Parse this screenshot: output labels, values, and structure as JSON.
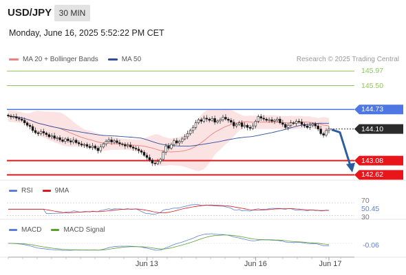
{
  "header": {
    "symbol": "USD/JPY",
    "timeframe": "30 MIN",
    "datetime": "Monday, June 16, 2025 5:52:22 PM CET",
    "credit": "Research © 2025 Trading Central"
  },
  "colors": {
    "resistance_green": "#8cc65a",
    "pivot_blue": "#4d77e3",
    "support_red": "#e8161b",
    "current_price_box": "#2b2b2b",
    "candle_up": "#444444",
    "candle_down": "#111111",
    "bollinger_fill": "#fbdede",
    "ma20": "#f07f7f",
    "ma50": "#2c4e9a",
    "arrow": "#2c5d9f",
    "rsi": "#5b7fd6",
    "rsi_ma": "#d81a1a",
    "macd": "#5b7fd6",
    "macd_signal": "#5aa02c"
  },
  "chart_data": [
    {
      "type": "candlestick",
      "name": "price",
      "legend": [
        "MA 20 + Bollinger Bands",
        "MA 50"
      ],
      "ylim": [
        142.45,
        146.2
      ],
      "x_ticks": [
        "Jun 13",
        "Jun 16",
        "Jun 17"
      ],
      "levels": [
        {
          "label": "145.97",
          "value": 145.97,
          "kind": "resistance"
        },
        {
          "label": "145.50",
          "value": 145.5,
          "kind": "resistance"
        },
        {
          "label": "144.73",
          "value": 144.73,
          "kind": "pivot"
        },
        {
          "label": "144.10",
          "value": 144.1,
          "kind": "current"
        },
        {
          "label": "143.08",
          "value": 143.08,
          "kind": "support"
        },
        {
          "label": "142.62",
          "value": 142.62,
          "kind": "support"
        }
      ],
      "trend_arrow": {
        "from": 144.08,
        "to": 142.7,
        "direction": "down"
      },
      "close": [
        144.52,
        144.49,
        144.5,
        144.45,
        144.42,
        144.38,
        144.3,
        144.22,
        144.18,
        144.05,
        143.98,
        143.95,
        144.02,
        143.97,
        143.92,
        143.85,
        143.88,
        143.8,
        143.82,
        143.75,
        143.7,
        143.78,
        143.72,
        143.68,
        143.74,
        143.66,
        143.62,
        143.58,
        143.6,
        143.54,
        143.5,
        143.55,
        143.48,
        143.4,
        143.52,
        143.62,
        143.7,
        143.75,
        143.68,
        143.72,
        143.66,
        143.62,
        143.6,
        143.55,
        143.58,
        143.52,
        143.48,
        143.45,
        143.4,
        143.35,
        143.25,
        143.18,
        143.1,
        143.0,
        142.98,
        143.05,
        143.12,
        143.35,
        143.55,
        143.48,
        143.6,
        143.72,
        143.65,
        143.7,
        143.78,
        143.85,
        143.95,
        144.05,
        144.15,
        144.3,
        144.4,
        144.35,
        144.45,
        144.42,
        144.38,
        144.44,
        144.32,
        144.36,
        144.4,
        144.48,
        144.42,
        144.38,
        144.32,
        144.2,
        144.25,
        144.3,
        144.18,
        144.22,
        144.15,
        144.12,
        144.2,
        144.35,
        144.5,
        144.45,
        144.42,
        144.38,
        144.4,
        144.35,
        144.38,
        144.42,
        144.3,
        144.25,
        144.15,
        144.22,
        144.3,
        144.28,
        144.35,
        144.33,
        144.25,
        144.2,
        144.15,
        144.22,
        144.26,
        144.2,
        144.1,
        143.95,
        143.9,
        144.05,
        144.1
      ]
    },
    {
      "type": "line",
      "name": "RSI",
      "legend": [
        "RSI",
        "9MA"
      ],
      "y_ticks": [
        "70",
        "50.45",
        "30"
      ],
      "current": 50.45
    },
    {
      "type": "line",
      "name": "MACD",
      "legend": [
        "MACD",
        "MACD Signal"
      ],
      "current": -0.06,
      "current_label": "-0.06"
    }
  ]
}
